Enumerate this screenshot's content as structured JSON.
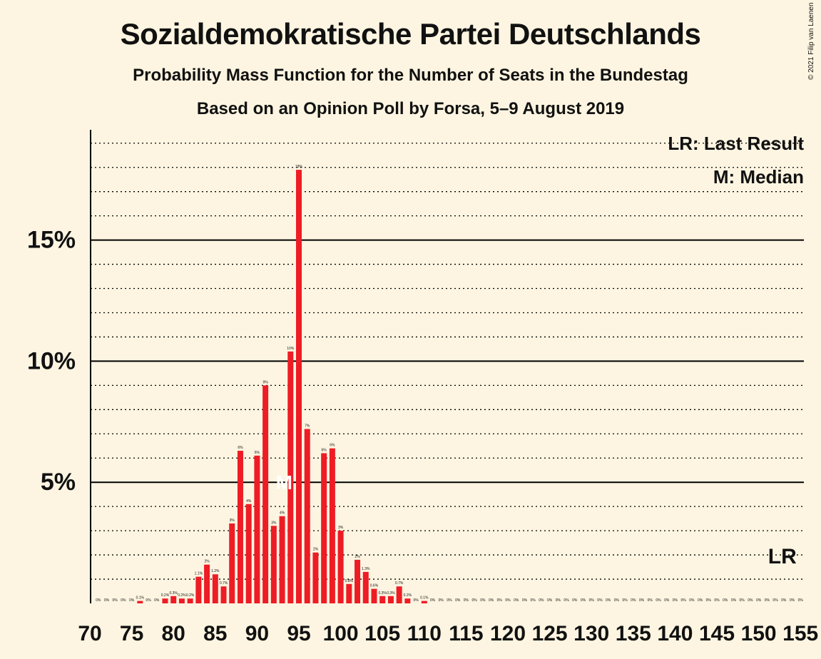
{
  "header": {
    "title": "Sozialdemokratische Partei Deutschlands",
    "subtitle": "Probability Mass Function for the Number of Seats in the Bundestag",
    "source": "Based on an Opinion Poll by Forsa, 5–9 August 2019",
    "copyright": "© 2021 Filip van Laenen"
  },
  "colors": {
    "background": "#fdf5e1",
    "bar": "#ee1c25",
    "text": "#111111"
  },
  "chart_data": {
    "type": "bar",
    "x": [
      71,
      72,
      73,
      74,
      75,
      76,
      77,
      78,
      79,
      80,
      81,
      82,
      83,
      84,
      85,
      86,
      87,
      88,
      89,
      90,
      91,
      92,
      93,
      94,
      95,
      96,
      97,
      98,
      99,
      100,
      101,
      102,
      103,
      104,
      105,
      106,
      107,
      108,
      109,
      110,
      111,
      112,
      113,
      114,
      115,
      116,
      117,
      118,
      119,
      120,
      121,
      122,
      123,
      124,
      125,
      126,
      127,
      128,
      129,
      130,
      131,
      132,
      133,
      134,
      135,
      136,
      137,
      138,
      139,
      140,
      141,
      142,
      143,
      144,
      145,
      146,
      147,
      148,
      149,
      150,
      151,
      152,
      153,
      154,
      155
    ],
    "values": [
      0,
      0,
      0,
      0,
      0,
      0.1,
      0,
      0,
      0.2,
      0.3,
      0.2,
      0.2,
      1.1,
      1.6,
      1.2,
      0.7,
      3.3,
      6.3,
      4.1,
      6.1,
      9.0,
      3.2,
      3.6,
      10.4,
      17.9,
      7.2,
      2.1,
      6.2,
      6.4,
      3.0,
      0.8,
      1.8,
      1.3,
      0.6,
      0.3,
      0.3,
      0.7,
      0.2,
      0,
      0.1,
      0,
      0,
      0,
      0,
      0,
      0,
      0,
      0,
      0,
      0,
      0,
      0,
      0,
      0,
      0,
      0,
      0,
      0,
      0,
      0,
      0,
      0,
      0,
      0,
      0,
      0,
      0,
      0,
      0,
      0,
      0,
      0,
      0,
      0,
      0,
      0,
      0,
      0,
      0,
      0,
      0,
      0,
      0,
      0,
      0
    ],
    "labels": [
      "0%",
      "0%",
      "0%",
      "0%",
      "0%",
      "0.1%",
      "0%",
      "0%",
      "0.2%",
      "0.3%",
      "0.2%",
      "0.2%",
      "1.1%",
      "2%",
      "1.2%",
      "0.7%",
      "3%",
      "6%",
      "4%",
      "6%",
      "9%",
      "3%",
      "4%",
      "10%",
      "18%",
      "7%",
      "2%",
      "6%",
      "6%",
      "3%",
      "0.8%",
      "2%",
      "1.3%",
      "0.6%",
      "0.3%",
      "0.3%",
      "0.7%",
      "0.2%",
      "0%",
      "0.1%",
      "0%",
      "0%",
      "0%",
      "0%",
      "0%",
      "0%",
      "0%",
      "0%",
      "0%",
      "0%",
      "0%",
      "0%",
      "0%",
      "0%",
      "0%",
      "0%",
      "0%",
      "0%",
      "0%",
      "0%",
      "0%",
      "0%",
      "0%",
      "0%",
      "0%",
      "0%",
      "0%",
      "0%",
      "0%",
      "0%",
      "0%",
      "0%",
      "0%",
      "0%",
      "0%",
      "0%",
      "0%",
      "0%",
      "0%",
      "0%",
      "0%",
      "0%",
      "0%",
      "0%",
      "0%"
    ],
    "xticks": [
      70,
      75,
      80,
      85,
      90,
      95,
      100,
      105,
      110,
      115,
      120,
      125,
      130,
      135,
      140,
      145,
      150,
      155
    ],
    "yticks": [
      5,
      10,
      15
    ],
    "ytick_labels": [
      "5%",
      "10%",
      "15%"
    ],
    "ylim": [
      0,
      19.5
    ],
    "xlim": [
      70,
      156
    ],
    "grid": "dotted every 1%, solid at 5% steps",
    "median": 94,
    "median_marker": "M",
    "last_result": 153,
    "last_result_marker": "LR",
    "legend": [
      "LR: Last Result",
      "M: Median"
    ],
    "legend_position": "top-right"
  }
}
